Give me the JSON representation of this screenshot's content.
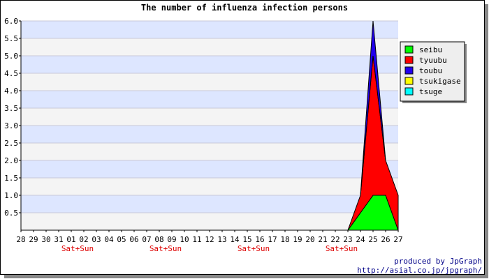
{
  "chart_data": {
    "type": "area",
    "title": "The number of influenza infection persons",
    "x": [
      "28",
      "29",
      "30",
      "31",
      "01",
      "02",
      "03",
      "04",
      "05",
      "06",
      "07",
      "08",
      "09",
      "10",
      "11",
      "12",
      "13",
      "14",
      "15",
      "16",
      "17",
      "18",
      "19",
      "20",
      "21",
      "22",
      "23",
      "24",
      "25",
      "26",
      "27"
    ],
    "weekend_labels": [
      {
        "after_x": "01",
        "label": "Sat+Sun"
      },
      {
        "after_x": "08",
        "label": "Sat+Sun"
      },
      {
        "after_x": "15",
        "label": "Sat+Sun"
      },
      {
        "after_x": "22",
        "label": "Sat+Sun"
      }
    ],
    "ylim": [
      0,
      6.0
    ],
    "yticks": [
      "0.5",
      "1.0",
      "1.5",
      "2.0",
      "2.5",
      "3.0",
      "3.5",
      "4.0",
      "4.5",
      "5.0",
      "5.5",
      "6.0"
    ],
    "stacked": true,
    "series": [
      {
        "name": "seibu",
        "color": "#00ff00",
        "values": [
          0,
          0,
          0,
          0,
          0,
          0,
          0,
          0,
          0,
          0,
          0,
          0,
          0,
          0,
          0,
          0,
          0,
          0,
          0,
          0,
          0,
          0,
          0,
          0,
          0,
          0,
          0,
          0.5,
          1,
          1,
          0
        ]
      },
      {
        "name": "tyuubu",
        "color": "#ff0000",
        "values": [
          0,
          0,
          0,
          0,
          0,
          0,
          0,
          0,
          0,
          0,
          0,
          0,
          0,
          0,
          0,
          0,
          0,
          0,
          0,
          0,
          0,
          0,
          0,
          0,
          0,
          0,
          0,
          0.5,
          4,
          1,
          1
        ]
      },
      {
        "name": "toubu",
        "color": "#2200ee",
        "values": [
          0,
          0,
          0,
          0,
          0,
          0,
          0,
          0,
          0,
          0,
          0,
          0,
          0,
          0,
          0,
          0,
          0,
          0,
          0,
          0,
          0,
          0,
          0,
          0,
          0,
          0,
          0,
          0,
          1,
          0,
          0
        ]
      },
      {
        "name": "tsukigase",
        "color": "#ffff00",
        "values": [
          0,
          0,
          0,
          0,
          0,
          0,
          0,
          0,
          0,
          0,
          0,
          0,
          0,
          0,
          0,
          0,
          0,
          0,
          0,
          0,
          0,
          0,
          0,
          0,
          0,
          0,
          0,
          0,
          0,
          0,
          0
        ]
      },
      {
        "name": "tsuge",
        "color": "#00ffff",
        "values": [
          0,
          0,
          0,
          0,
          0,
          0,
          0,
          0,
          0,
          0,
          0,
          0,
          0,
          0,
          0,
          0,
          0,
          0,
          0,
          0,
          0,
          0,
          0,
          0,
          0,
          0,
          0,
          0,
          0,
          0,
          0
        ]
      }
    ],
    "grid": true,
    "legend_position": "top-right"
  },
  "credits": {
    "line1": "produced by JpGraph",
    "line2": "http://asial.co.jp/jpgraph/"
  },
  "colors": {
    "band_a": "#dde6ff",
    "band_b": "#f4f4f4",
    "weekend_label": "#dd0000",
    "credit_text": "#000088"
  }
}
